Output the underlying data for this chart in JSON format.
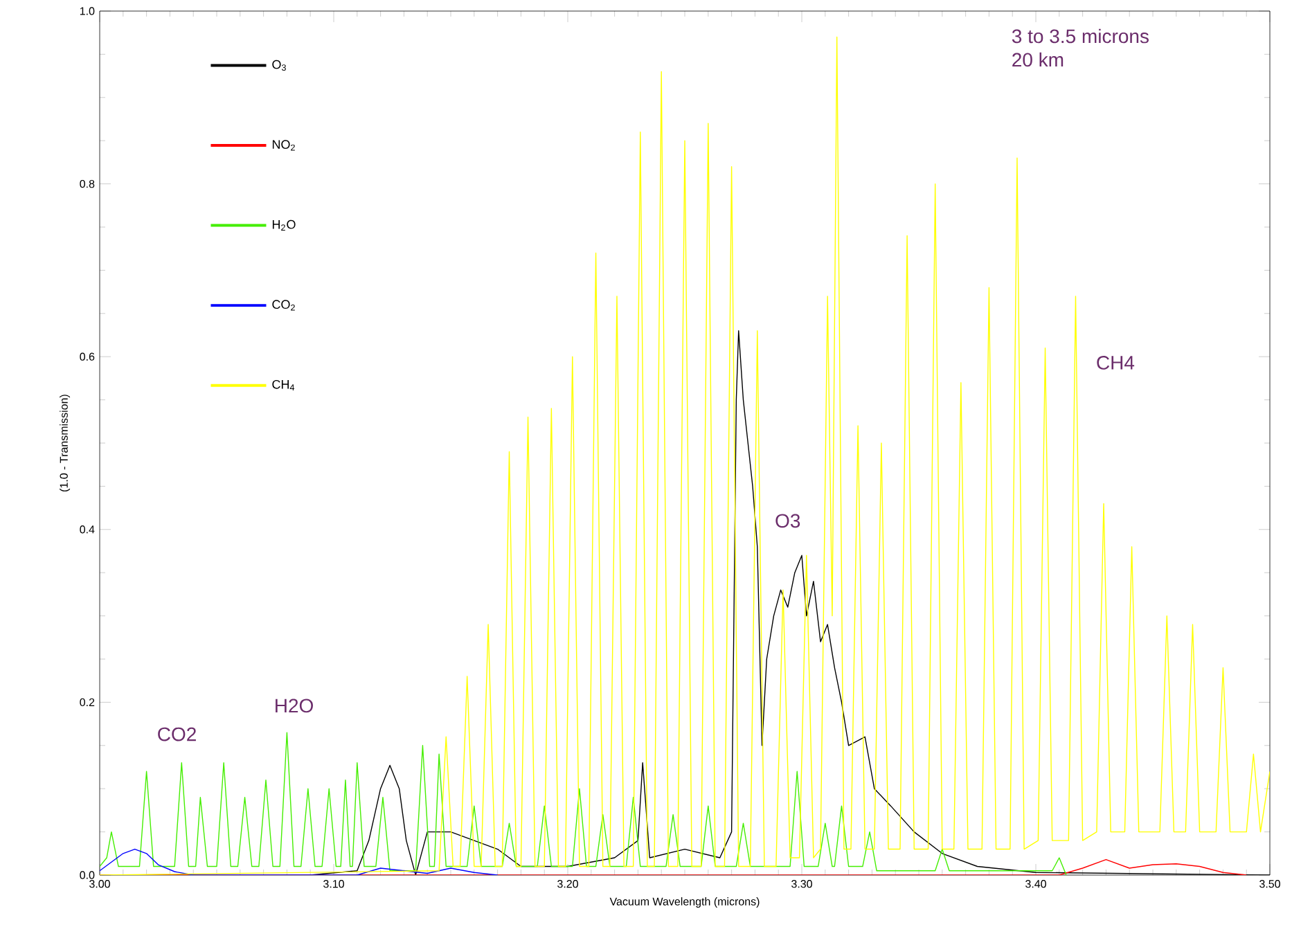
{
  "chart_data": {
    "type": "line",
    "xlabel": "Vacuum Wavelength (microns)",
    "ylabel": "(1.0 - Transmission)",
    "xlim": [
      3.0,
      3.5
    ],
    "ylim": [
      0,
      1.0
    ],
    "xticks": [
      {
        "value": 3.0,
        "label": "3.00"
      },
      {
        "value": 3.1,
        "label": "3.10"
      },
      {
        "value": 3.2,
        "label": "3.20"
      },
      {
        "value": 3.3,
        "label": "3.30"
      },
      {
        "value": 3.4,
        "label": "3.40"
      },
      {
        "value": 3.5,
        "label": "3.50"
      }
    ],
    "yticks": [
      {
        "value": 0,
        "label": "0.0"
      },
      {
        "value": 0.2,
        "label": "0.2"
      },
      {
        "value": 0.4,
        "label": "0.4"
      },
      {
        "value": 0.6,
        "label": "0.6"
      },
      {
        "value": 0.8,
        "label": "0.8"
      },
      {
        "value": 1.0,
        "label": "1.0"
      }
    ],
    "legend": "top left",
    "annotations": [
      "3 to 3.5 microns",
      "20 km",
      "CO2",
      "H2O",
      "O3",
      "CH4"
    ],
    "series": [
      {
        "name": "O$_{3}$",
        "color": "#000000",
        "x": [
          3.0,
          3.09,
          3.11,
          3.115,
          3.12,
          3.124,
          3.128,
          3.131,
          3.135,
          3.14,
          3.15,
          3.16,
          3.17,
          3.18,
          3.2,
          3.22,
          3.23,
          3.232,
          3.235,
          3.25,
          3.265,
          3.27,
          3.272,
          3.273,
          3.275,
          3.277,
          3.279,
          3.281,
          3.283,
          3.285,
          3.288,
          3.291,
          3.294,
          3.297,
          3.3,
          3.302,
          3.305,
          3.308,
          3.311,
          3.314,
          3.317,
          3.32,
          3.327,
          3.331,
          3.338,
          3.348,
          3.36,
          3.375,
          3.4,
          3.5
        ],
        "values": [
          0,
          0,
          0.005,
          0.04,
          0.1,
          0.127,
          0.1,
          0.04,
          0.0,
          0.05,
          0.05,
          0.04,
          0.03,
          0.01,
          0.01,
          0.02,
          0.04,
          0.13,
          0.02,
          0.03,
          0.02,
          0.05,
          0.55,
          0.63,
          0.55,
          0.5,
          0.45,
          0.38,
          0.15,
          0.25,
          0.3,
          0.33,
          0.31,
          0.35,
          0.37,
          0.3,
          0.34,
          0.27,
          0.29,
          0.24,
          0.2,
          0.15,
          0.16,
          0.1,
          0.08,
          0.05,
          0.025,
          0.01,
          0.003,
          0
        ]
      },
      {
        "name": "NO$_{2}$",
        "color": "#ff0000",
        "x": [
          3.0,
          3.41,
          3.42,
          3.43,
          3.44,
          3.45,
          3.46,
          3.47,
          3.48,
          3.49
        ],
        "values": [
          0,
          0,
          0.008,
          0.018,
          0.008,
          0.012,
          0.013,
          0.01,
          0.003,
          0
        ]
      },
      {
        "name": "H$_{2}$O",
        "color": "#44ee00",
        "x": [
          3.0,
          3.003,
          3.005,
          3.008,
          3.017,
          3.02,
          3.023,
          3.032,
          3.035,
          3.038,
          3.041,
          3.043,
          3.046,
          3.05,
          3.053,
          3.056,
          3.059,
          3.062,
          3.065,
          3.068,
          3.071,
          3.074,
          3.077,
          3.08,
          3.083,
          3.086,
          3.089,
          3.092,
          3.095,
          3.098,
          3.101,
          3.103,
          3.105,
          3.107,
          3.108,
          3.11,
          3.113,
          3.118,
          3.121,
          3.124,
          3.135,
          3.138,
          3.141,
          3.143,
          3.145,
          3.148,
          3.157,
          3.16,
          3.163,
          3.172,
          3.175,
          3.178,
          3.187,
          3.19,
          3.193,
          3.202,
          3.205,
          3.208,
          3.212,
          3.215,
          3.218,
          3.225,
          3.228,
          3.231,
          3.242,
          3.245,
          3.248,
          3.257,
          3.26,
          3.263,
          3.272,
          3.275,
          3.278,
          3.295,
          3.298,
          3.301,
          3.307,
          3.31,
          3.313,
          3.314,
          3.317,
          3.32,
          3.326,
          3.329,
          3.332,
          3.357,
          3.36,
          3.363,
          3.407,
          3.41,
          3.413
        ],
        "values": [
          0.01,
          0.02,
          0.05,
          0.01,
          0.01,
          0.12,
          0.01,
          0.01,
          0.13,
          0.01,
          0.01,
          0.09,
          0.01,
          0.01,
          0.13,
          0.01,
          0.01,
          0.09,
          0.01,
          0.01,
          0.11,
          0.01,
          0.01,
          0.165,
          0.01,
          0.01,
          0.1,
          0.01,
          0.01,
          0.1,
          0.01,
          0.01,
          0.11,
          0.01,
          0.01,
          0.13,
          0.01,
          0.01,
          0.09,
          0.005,
          0.005,
          0.15,
          0.01,
          0.01,
          0.14,
          0.01,
          0.01,
          0.08,
          0.01,
          0.01,
          0.06,
          0.01,
          0.01,
          0.08,
          0.01,
          0.01,
          0.1,
          0.01,
          0.01,
          0.07,
          0.01,
          0.01,
          0.09,
          0.01,
          0.01,
          0.07,
          0.01,
          0.01,
          0.08,
          0.01,
          0.01,
          0.06,
          0.01,
          0.01,
          0.12,
          0.01,
          0.01,
          0.06,
          0.01,
          0.01,
          0.08,
          0.01,
          0.01,
          0.05,
          0.005,
          0.005,
          0.03,
          0.005,
          0.005,
          0.02,
          0
        ]
      },
      {
        "name": "CO$_{2}$",
        "color": "#0000ff",
        "x": [
          3.0,
          3.005,
          3.01,
          3.015,
          3.02,
          3.025,
          3.032,
          3.04,
          3.11,
          3.12,
          3.13,
          3.14,
          3.15,
          3.16,
          3.17
        ],
        "values": [
          0.005,
          0.015,
          0.025,
          0.03,
          0.025,
          0.012,
          0.004,
          0,
          0,
          0.008,
          0.005,
          0.002,
          0.008,
          0.003,
          0
        ]
      },
      {
        "name": "CH$_{4}$",
        "color": "#ffff00",
        "x": [
          3.0,
          3.145,
          3.148,
          3.151,
          3.154,
          3.157,
          3.16,
          3.163,
          3.166,
          3.169,
          3.172,
          3.175,
          3.178,
          3.18,
          3.183,
          3.186,
          3.19,
          3.193,
          3.196,
          3.199,
          3.202,
          3.205,
          3.209,
          3.212,
          3.215,
          3.218,
          3.221,
          3.224,
          3.228,
          3.231,
          3.234,
          3.237,
          3.24,
          3.243,
          3.247,
          3.25,
          3.253,
          3.257,
          3.26,
          3.263,
          3.267,
          3.27,
          3.273,
          3.278,
          3.281,
          3.284,
          3.289,
          3.292,
          3.295,
          3.299,
          3.302,
          3.305,
          3.308,
          3.311,
          3.313,
          3.315,
          3.318,
          3.321,
          3.324,
          3.327,
          3.331,
          3.334,
          3.337,
          3.342,
          3.345,
          3.348,
          3.354,
          3.357,
          3.36,
          3.365,
          3.368,
          3.371,
          3.377,
          3.38,
          3.383,
          3.389,
          3.392,
          3.395,
          3.401,
          3.404,
          3.407,
          3.414,
          3.417,
          3.42,
          3.426,
          3.429,
          3.432,
          3.438,
          3.441,
          3.444,
          3.453,
          3.456,
          3.459,
          3.464,
          3.467,
          3.47,
          3.477,
          3.48,
          3.483,
          3.49,
          3.493,
          3.496,
          3.5
        ],
        "values": [
          0,
          0.005,
          0.16,
          0.01,
          0.01,
          0.23,
          0.01,
          0.01,
          0.29,
          0.01,
          0.01,
          0.49,
          0.01,
          0.01,
          0.53,
          0.01,
          0.01,
          0.54,
          0.01,
          0.01,
          0.6,
          0.01,
          0.01,
          0.72,
          0.01,
          0.01,
          0.67,
          0.01,
          0.01,
          0.86,
          0.01,
          0.01,
          0.93,
          0.01,
          0.01,
          0.85,
          0.01,
          0.01,
          0.87,
          0.01,
          0.01,
          0.82,
          0.01,
          0.01,
          0.63,
          0.01,
          0.01,
          0.33,
          0.02,
          0.02,
          0.37,
          0.02,
          0.03,
          0.67,
          0.3,
          0.97,
          0.03,
          0.03,
          0.52,
          0.03,
          0.03,
          0.5,
          0.03,
          0.03,
          0.74,
          0.03,
          0.03,
          0.8,
          0.03,
          0.03,
          0.57,
          0.03,
          0.03,
          0.68,
          0.03,
          0.03,
          0.83,
          0.03,
          0.04,
          0.61,
          0.04,
          0.04,
          0.67,
          0.04,
          0.05,
          0.43,
          0.05,
          0.05,
          0.38,
          0.05,
          0.05,
          0.3,
          0.05,
          0.05,
          0.29,
          0.05,
          0.05,
          0.24,
          0.05,
          0.05,
          0.14,
          0.05,
          0.12
        ]
      }
    ]
  }
}
